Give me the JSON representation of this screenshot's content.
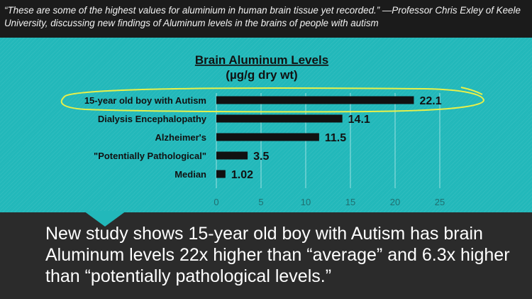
{
  "quote": {
    "text": "“These are some of the highest values for aluminium in human brain tissue yet recorded.” —Professor Chris Exley of Keele University, discussing new findings of Aluminum levels in the brains of people with autism"
  },
  "caption": {
    "text": "New study shows 15-year old boy with Autism has brain Aluminum levels 22x higher than “average” and 6.3x higher than “potentially pathological levels.”"
  },
  "colors": {
    "background_panel": "#22b8ba",
    "bar": "#111111",
    "highlight_circle": "#e8f04a",
    "dark_panel": "#2b2b2b"
  },
  "chart_data": {
    "type": "bar",
    "orientation": "horizontal",
    "title": "Brain Aluminum Levels",
    "subtitle": "(µg/g dry wt)",
    "categories": [
      "15-year old boy with Autism",
      "Dialysis Encephalopathy",
      "Alzheimer's",
      "\"Potentially Pathological\"",
      "Median"
    ],
    "values": [
      22.1,
      14.1,
      11.5,
      3.5,
      1.02
    ],
    "data_labels": [
      "22.1",
      "14.1",
      "11.5",
      "3.5",
      "1.02"
    ],
    "x_ticks": [
      "0",
      "5",
      "10",
      "15",
      "20",
      "25"
    ],
    "xlim": [
      0,
      25
    ],
    "grid": "vertical",
    "highlighted_category": "15-year old boy with Autism"
  }
}
